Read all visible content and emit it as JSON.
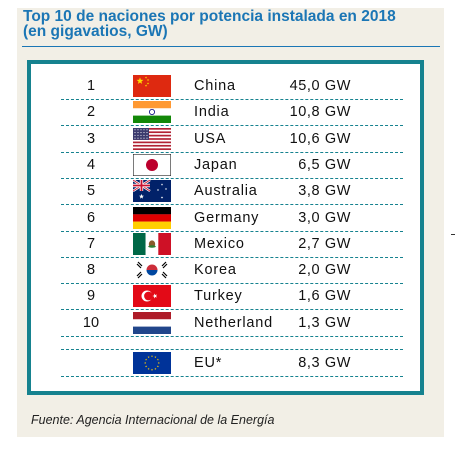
{
  "chart_data": {
    "type": "table",
    "title": "Top 10 de naciones por potencia instalada en 2018 (en gigavatios, GW)",
    "title_line1": "Top 10 de naciones por potencia instalada en 2018",
    "title_line2": "(en gigavatios, GW)",
    "unit": "GW",
    "rows": [
      {
        "rank": "1",
        "country": "China",
        "flag": "china-flag-icon",
        "value": 45.0,
        "value_label": "45,0 GW"
      },
      {
        "rank": "2",
        "country": "India",
        "flag": "india-flag-icon",
        "value": 10.8,
        "value_label": "10,8 GW"
      },
      {
        "rank": "3",
        "country": "USA",
        "flag": "usa-flag-icon",
        "value": 10.6,
        "value_label": "10,6 GW"
      },
      {
        "rank": "4",
        "country": "Japan",
        "flag": "japan-flag-icon",
        "value": 6.5,
        "value_label": "6,5 GW"
      },
      {
        "rank": "5",
        "country": "Australia",
        "flag": "australia-flag-icon",
        "value": 3.8,
        "value_label": "3,8 GW"
      },
      {
        "rank": "6",
        "country": "Germany",
        "flag": "germany-flag-icon",
        "value": 3.0,
        "value_label": "3,0 GW"
      },
      {
        "rank": "7",
        "country": "Mexico",
        "flag": "mexico-flag-icon",
        "value": 2.7,
        "value_label": "2,7 GW"
      },
      {
        "rank": "8",
        "country": "Korea",
        "flag": "korea-flag-icon",
        "value": 2.0,
        "value_label": "2,0 GW"
      },
      {
        "rank": "9",
        "country": "Turkey",
        "flag": "turkey-flag-icon",
        "value": 1.6,
        "value_label": "1,6 GW"
      },
      {
        "rank": "10",
        "country": "Netherland",
        "flag": "netherlands-flag-icon",
        "value": 1.3,
        "value_label": "1,3 GW"
      }
    ],
    "extra_row": {
      "rank": "",
      "country": "EU*",
      "flag": "eu-flag-icon",
      "value": 8.3,
      "value_label": "8,3 GW"
    },
    "source": "Fuente: Agencia Internacional de la Energía"
  },
  "colors": {
    "title": "#1b76b5",
    "frame": "#16828f",
    "card_background": "#f2efe6"
  }
}
